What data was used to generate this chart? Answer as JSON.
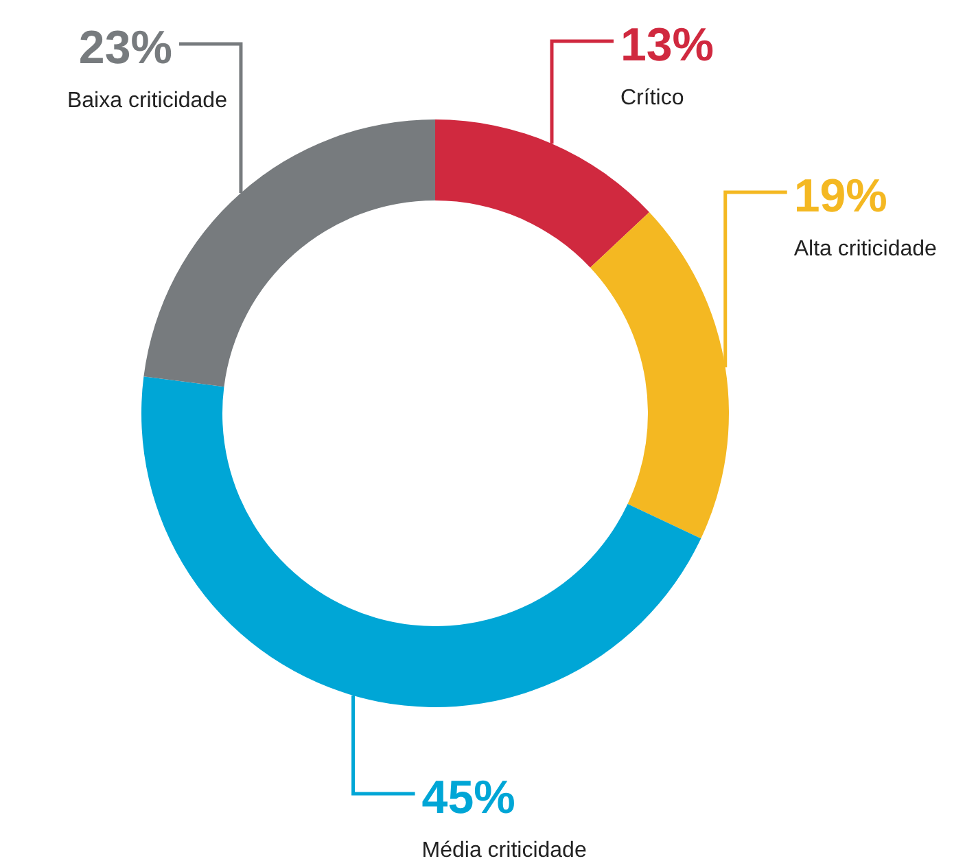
{
  "chart_data": {
    "type": "donut",
    "categories": [
      "Crítico",
      "Alta criticidade",
      "Média criticidade",
      "Baixa criticidade"
    ],
    "values": [
      13,
      19,
      45,
      23
    ],
    "colors": [
      "#d0293f",
      "#f4b822",
      "#00a6d6",
      "#777b7e"
    ],
    "value_labels": [
      "13%",
      "19%",
      "45%",
      "23%"
    ]
  }
}
